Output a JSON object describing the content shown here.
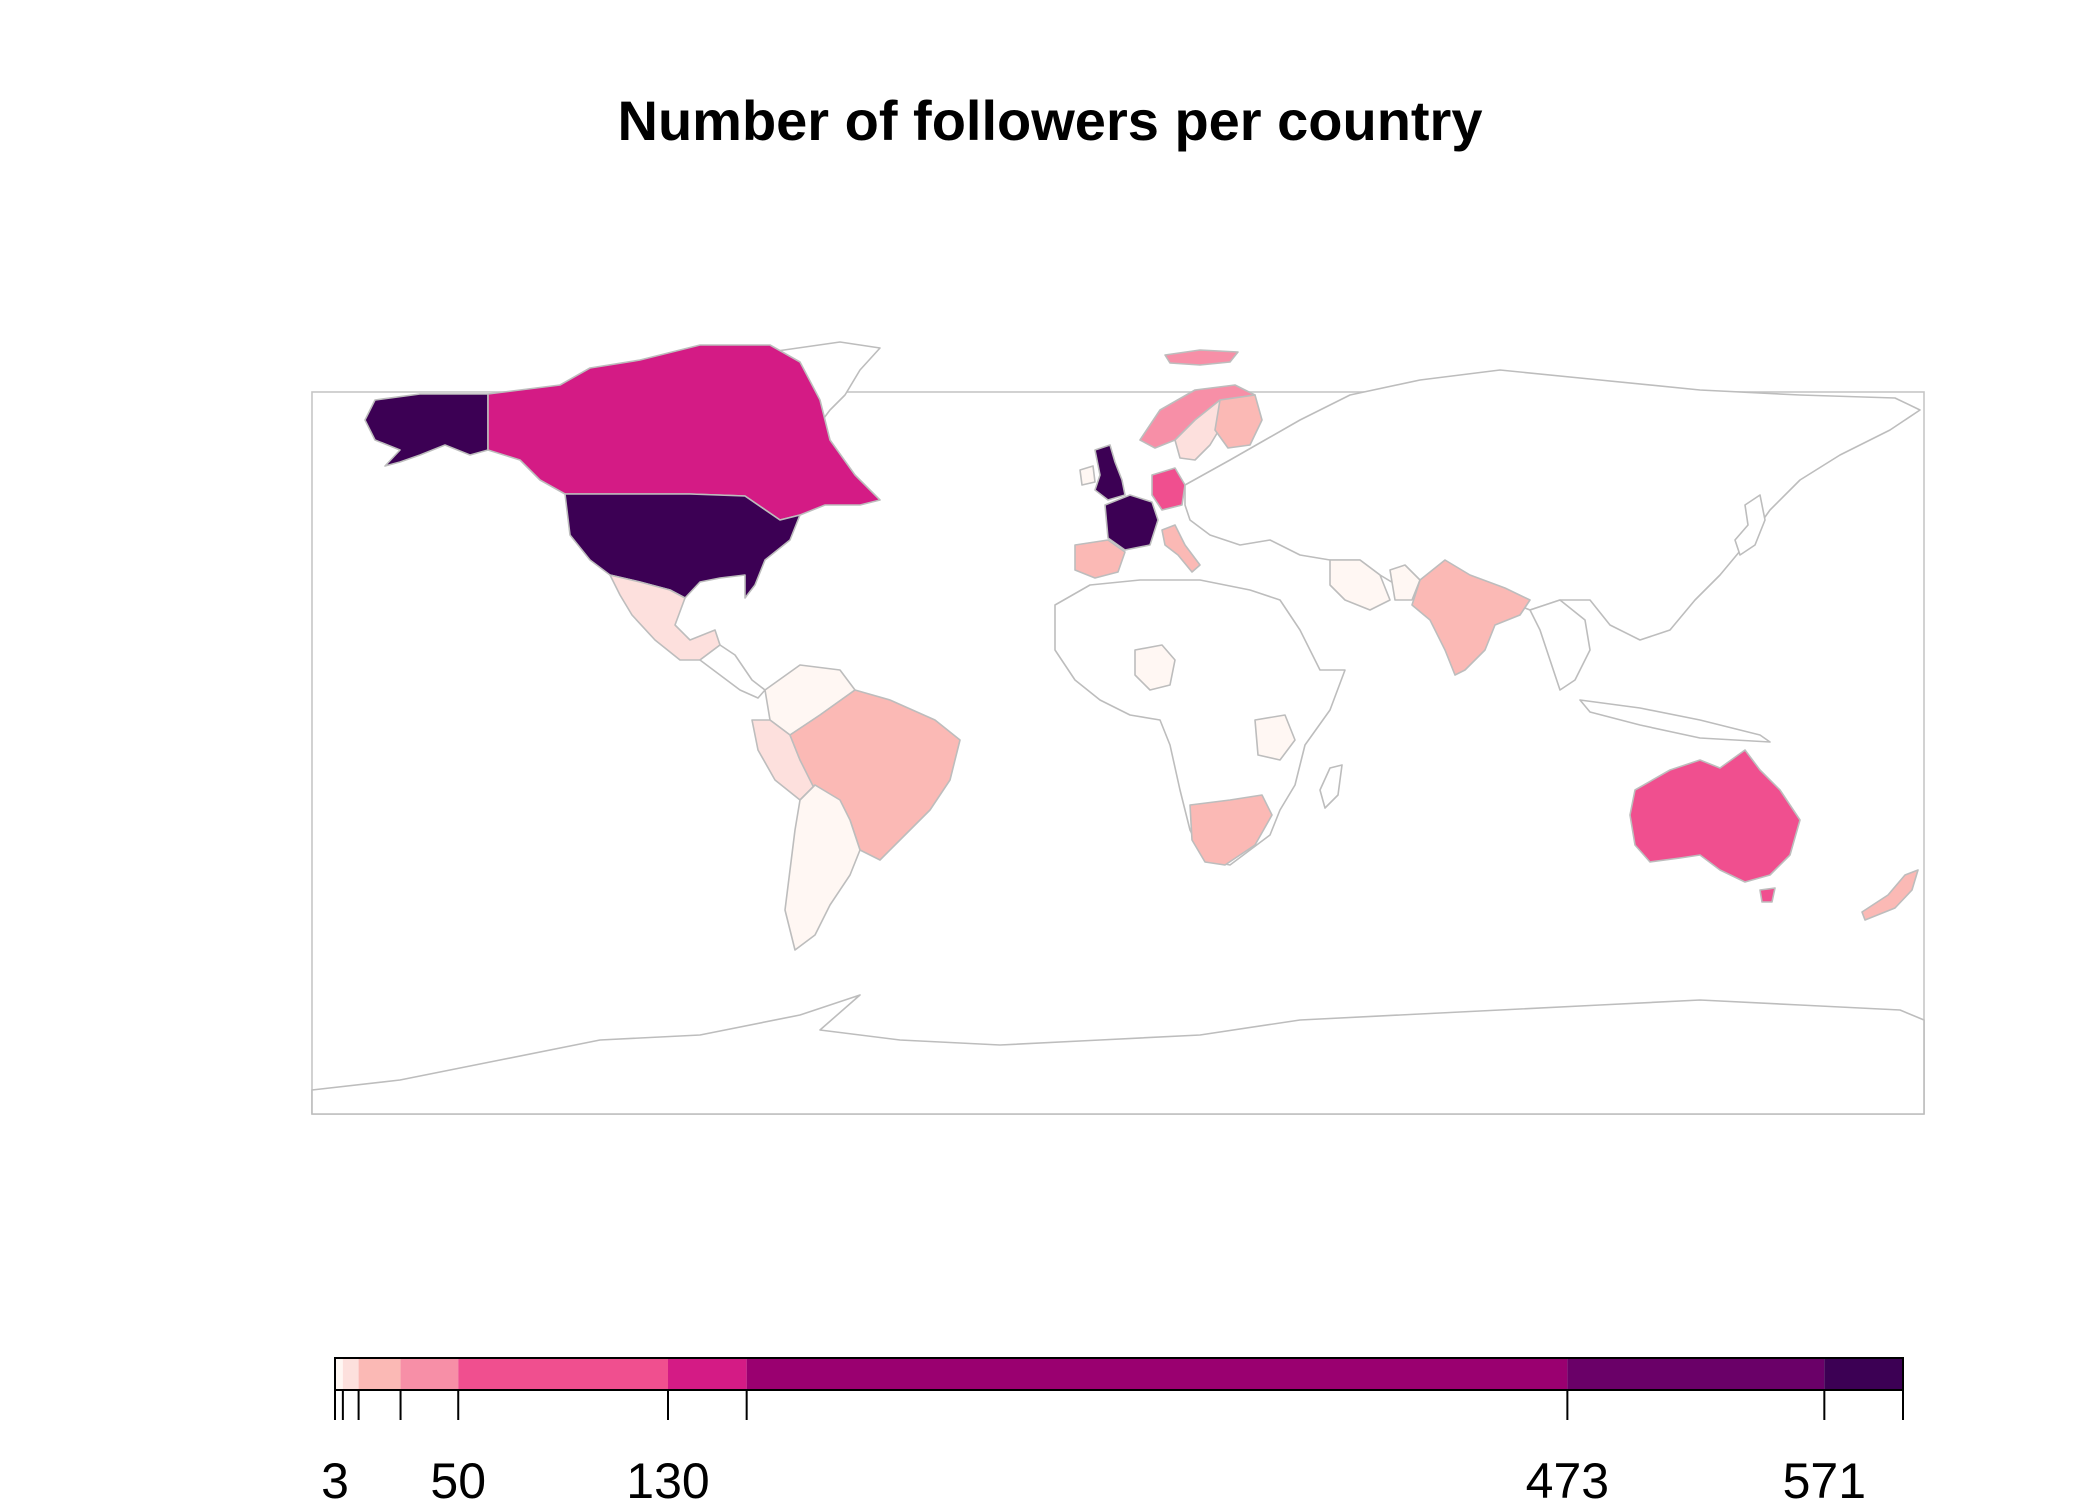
{
  "chart_data": {
    "type": "choropleth",
    "title": "Number of followers per country",
    "legend": {
      "placement": "bottom",
      "breaks": [
        3,
        50,
        130,
        473,
        571
      ],
      "bins": [
        {
          "min": 3,
          "max": 6,
          "color": "#fff7f3"
        },
        {
          "min": 6,
          "max": 12,
          "color": "#fde0dd"
        },
        {
          "min": 12,
          "max": 28,
          "color": "#fbb9b5"
        },
        {
          "min": 28,
          "max": 50,
          "color": "#f78fa7"
        },
        {
          "min": 50,
          "max": 130,
          "color": "#f04f8f"
        },
        {
          "min": 130,
          "max": 160,
          "color": "#d41b85"
        },
        {
          "min": 160,
          "max": 473,
          "color": "#9a0070"
        },
        {
          "min": 473,
          "max": 571,
          "color": "#6a0068"
        },
        {
          "min": 571,
          "max": 601,
          "color": "#3c0054"
        }
      ]
    },
    "countries": [
      {
        "name": "United States",
        "color": "#3c0054"
      },
      {
        "name": "United Kingdom",
        "color": "#3c0054"
      },
      {
        "name": "France",
        "color": "#3c0054"
      },
      {
        "name": "Canada",
        "color": "#d41b85"
      },
      {
        "name": "Germany",
        "color": "#f04f8f"
      },
      {
        "name": "Australia",
        "color": "#f04f8f"
      },
      {
        "name": "Norway",
        "color": "#f78fa7"
      },
      {
        "name": "Iceland",
        "color": "#f78fa7"
      },
      {
        "name": "Sweden",
        "color": "#fde0dd"
      },
      {
        "name": "Finland",
        "color": "#fbb9b5"
      },
      {
        "name": "Spain",
        "color": "#fbb9b5"
      },
      {
        "name": "Italy",
        "color": "#fbb9b5"
      },
      {
        "name": "Netherlands",
        "color": "#f78fa7"
      },
      {
        "name": "Brazil",
        "color": "#fbb9b5"
      },
      {
        "name": "India",
        "color": "#fbb9b5"
      },
      {
        "name": "South Africa",
        "color": "#fbb9b5"
      },
      {
        "name": "New Zealand",
        "color": "#fbb9b5"
      },
      {
        "name": "Mexico",
        "color": "#fde0dd"
      },
      {
        "name": "Peru",
        "color": "#fde0dd"
      },
      {
        "name": "Colombia",
        "color": "#fff7f3"
      },
      {
        "name": "Argentina",
        "color": "#fff7f3"
      },
      {
        "name": "Chile",
        "color": "#fff7f3"
      },
      {
        "name": "Iran",
        "color": "#fff7f3"
      },
      {
        "name": "Pakistan",
        "color": "#fff7f3"
      },
      {
        "name": "Nigeria",
        "color": "#fff7f3"
      },
      {
        "name": "Tanzania",
        "color": "#fff7f3"
      },
      {
        "name": "Ireland",
        "color": "#fff7f3"
      }
    ]
  }
}
